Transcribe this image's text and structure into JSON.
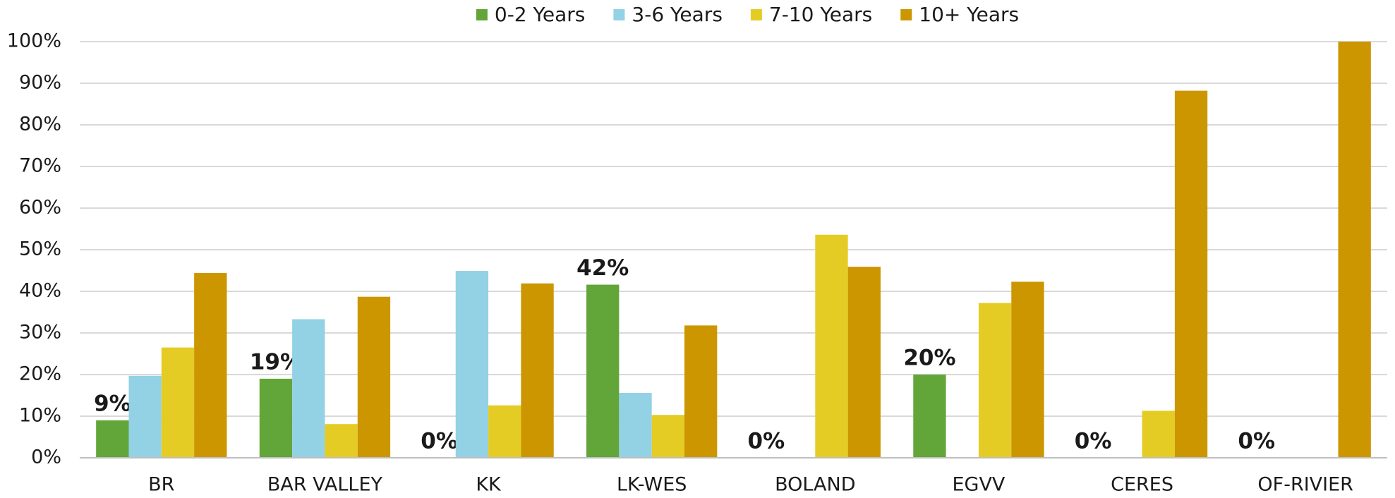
{
  "chart_data": {
    "type": "bar",
    "categories": [
      "BR",
      "BAR VALLEY",
      "KK",
      "LK-WES",
      "BOLAND",
      "EGVV",
      "CERES",
      "OF-RIVIER"
    ],
    "series": [
      {
        "name": "0-2 Years",
        "color": "#62a539",
        "values": [
          9,
          19,
          0,
          41.6,
          0,
          20,
          0,
          0
        ],
        "value_labels": [
          "9%",
          "19%",
          "0%",
          "42%",
          "0%",
          "20%",
          "0%",
          "0%"
        ]
      },
      {
        "name": "3-6 Years",
        "color": "#93d1e4",
        "values": [
          19.7,
          33.3,
          44.9,
          15.6,
          0,
          0,
          0,
          0
        ]
      },
      {
        "name": "7-10 Years",
        "color": "#e5cc24",
        "values": [
          26.5,
          8.1,
          12.6,
          10.3,
          53.6,
          37.2,
          11.3,
          0
        ]
      },
      {
        "name": "10+ Years",
        "color": "#cc9600",
        "values": [
          44.4,
          38.7,
          41.9,
          31.8,
          45.9,
          42.3,
          88.2,
          100
        ]
      }
    ],
    "ylim": [
      0,
      100
    ],
    "yticks": [
      {
        "value": 0,
        "label": "0%"
      },
      {
        "value": 10,
        "label": "10%"
      },
      {
        "value": 20,
        "label": "20%"
      },
      {
        "value": 30,
        "label": "30%"
      },
      {
        "value": 40,
        "label": "40%"
      },
      {
        "value": 50,
        "label": "50%"
      },
      {
        "value": 60,
        "label": "60%"
      },
      {
        "value": 70,
        "label": "70%"
      },
      {
        "value": 80,
        "label": "80%"
      },
      {
        "value": 90,
        "label": "90%"
      },
      {
        "value": 100,
        "label": "100%"
      }
    ],
    "grid": true,
    "legend": "top"
  }
}
